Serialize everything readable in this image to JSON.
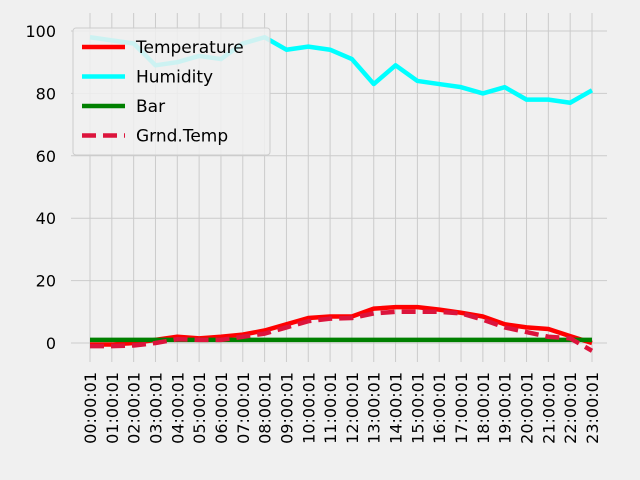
{
  "chart_data": {
    "type": "line",
    "title": "",
    "xlabel": "",
    "ylabel": "",
    "categories": [
      "00:00:01",
      "01:00:01",
      "02:00:01",
      "03:00:01",
      "04:00:01",
      "05:00:01",
      "06:00:01",
      "07:00:01",
      "08:00:01",
      "09:00:01",
      "10:00:01",
      "11:00:01",
      "12:00:01",
      "13:00:01",
      "14:00:01",
      "15:00:01",
      "16:00:01",
      "17:00:01",
      "18:00:01",
      "19:00:01",
      "20:00:01",
      "21:00:01",
      "22:00:01",
      "23:00:01"
    ],
    "ylim": [
      -4,
      103
    ],
    "yticks": [
      0,
      20,
      40,
      60,
      80,
      100
    ],
    "grid": true,
    "legend_position": "top-left",
    "series": [
      {
        "name": "Temperature",
        "color": "#ff0000",
        "dash": "solid",
        "values": [
          -0.5,
          -0.5,
          0.0,
          1.0,
          2.0,
          1.5,
          2.0,
          2.7,
          4.0,
          6.0,
          8.0,
          8.5,
          8.5,
          11.0,
          11.5,
          11.5,
          10.7,
          9.7,
          8.5,
          6.0,
          5.0,
          4.5,
          2.2,
          0.0
        ]
      },
      {
        "name": "Humidity",
        "color": "#00ffff",
        "dash": "solid",
        "values": [
          98,
          97,
          96,
          89,
          90,
          92,
          91,
          96,
          98,
          94,
          95,
          94,
          91,
          83,
          89,
          84,
          83,
          82,
          80,
          82,
          78,
          78,
          77,
          81
        ]
      },
      {
        "name": "Bar",
        "color": "#008000",
        "dash": "solid",
        "values": [
          1,
          1,
          1,
          1,
          1,
          1,
          1,
          1,
          1,
          1,
          1,
          1,
          1,
          1,
          1,
          1,
          1,
          1,
          1,
          1,
          1,
          1,
          1,
          1
        ]
      },
      {
        "name": "Grnd.Temp",
        "color": "#dc143c",
        "dash": "dashed",
        "values": [
          -1.0,
          -1.0,
          -0.8,
          0.0,
          1.2,
          1.0,
          1.0,
          2.0,
          3.0,
          5.0,
          7.0,
          7.8,
          8.0,
          9.5,
          10.0,
          10.0,
          10.0,
          9.5,
          7.5,
          5.0,
          3.5,
          2.0,
          1.5,
          -2.5
        ]
      }
    ]
  }
}
